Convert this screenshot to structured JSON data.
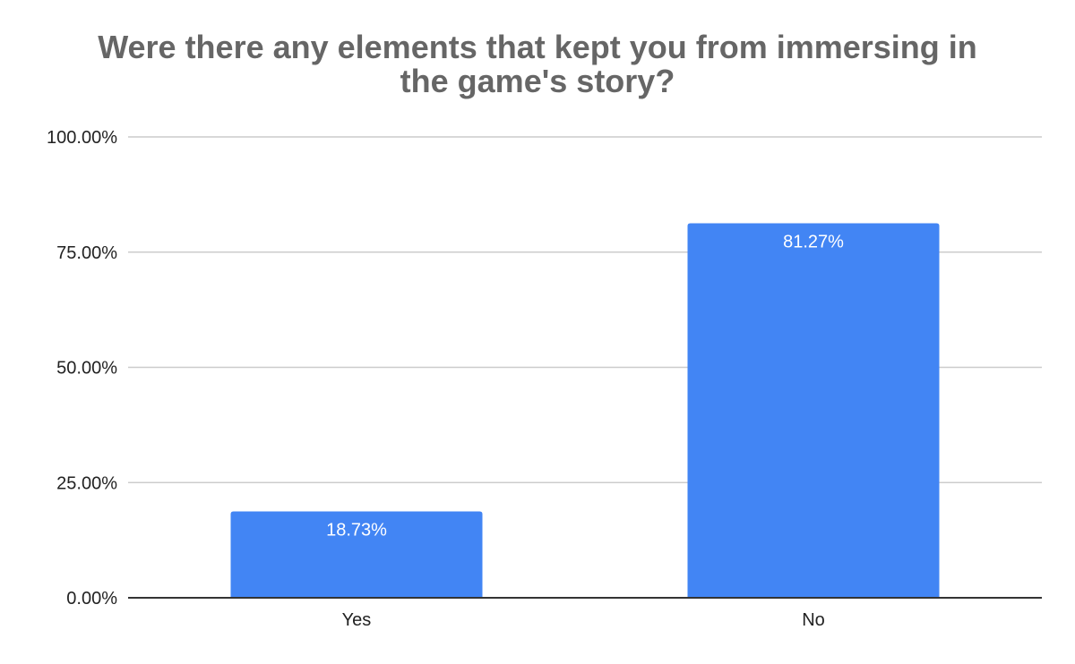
{
  "chart_data": {
    "type": "bar",
    "title_lines": [
      "Were there any elements that kept you from immersing in",
      "the game's story?"
    ],
    "categories": [
      "Yes",
      "No"
    ],
    "values": [
      18.73,
      81.27
    ],
    "value_labels": [
      "18.73%",
      "81.27%"
    ],
    "y_ticks": [
      0,
      25,
      50,
      75,
      100
    ],
    "y_tick_labels": [
      "0.00%",
      "25.00%",
      "50.00%",
      "75.00%",
      "100.00%"
    ],
    "ylim": [
      0,
      100
    ],
    "xlabel": "",
    "ylabel": "",
    "grid": true,
    "legend": "none",
    "bar_color": "#4285f4",
    "grid_color": "#cccccc",
    "axis_color": "#333333",
    "title_color": "#666666"
  }
}
